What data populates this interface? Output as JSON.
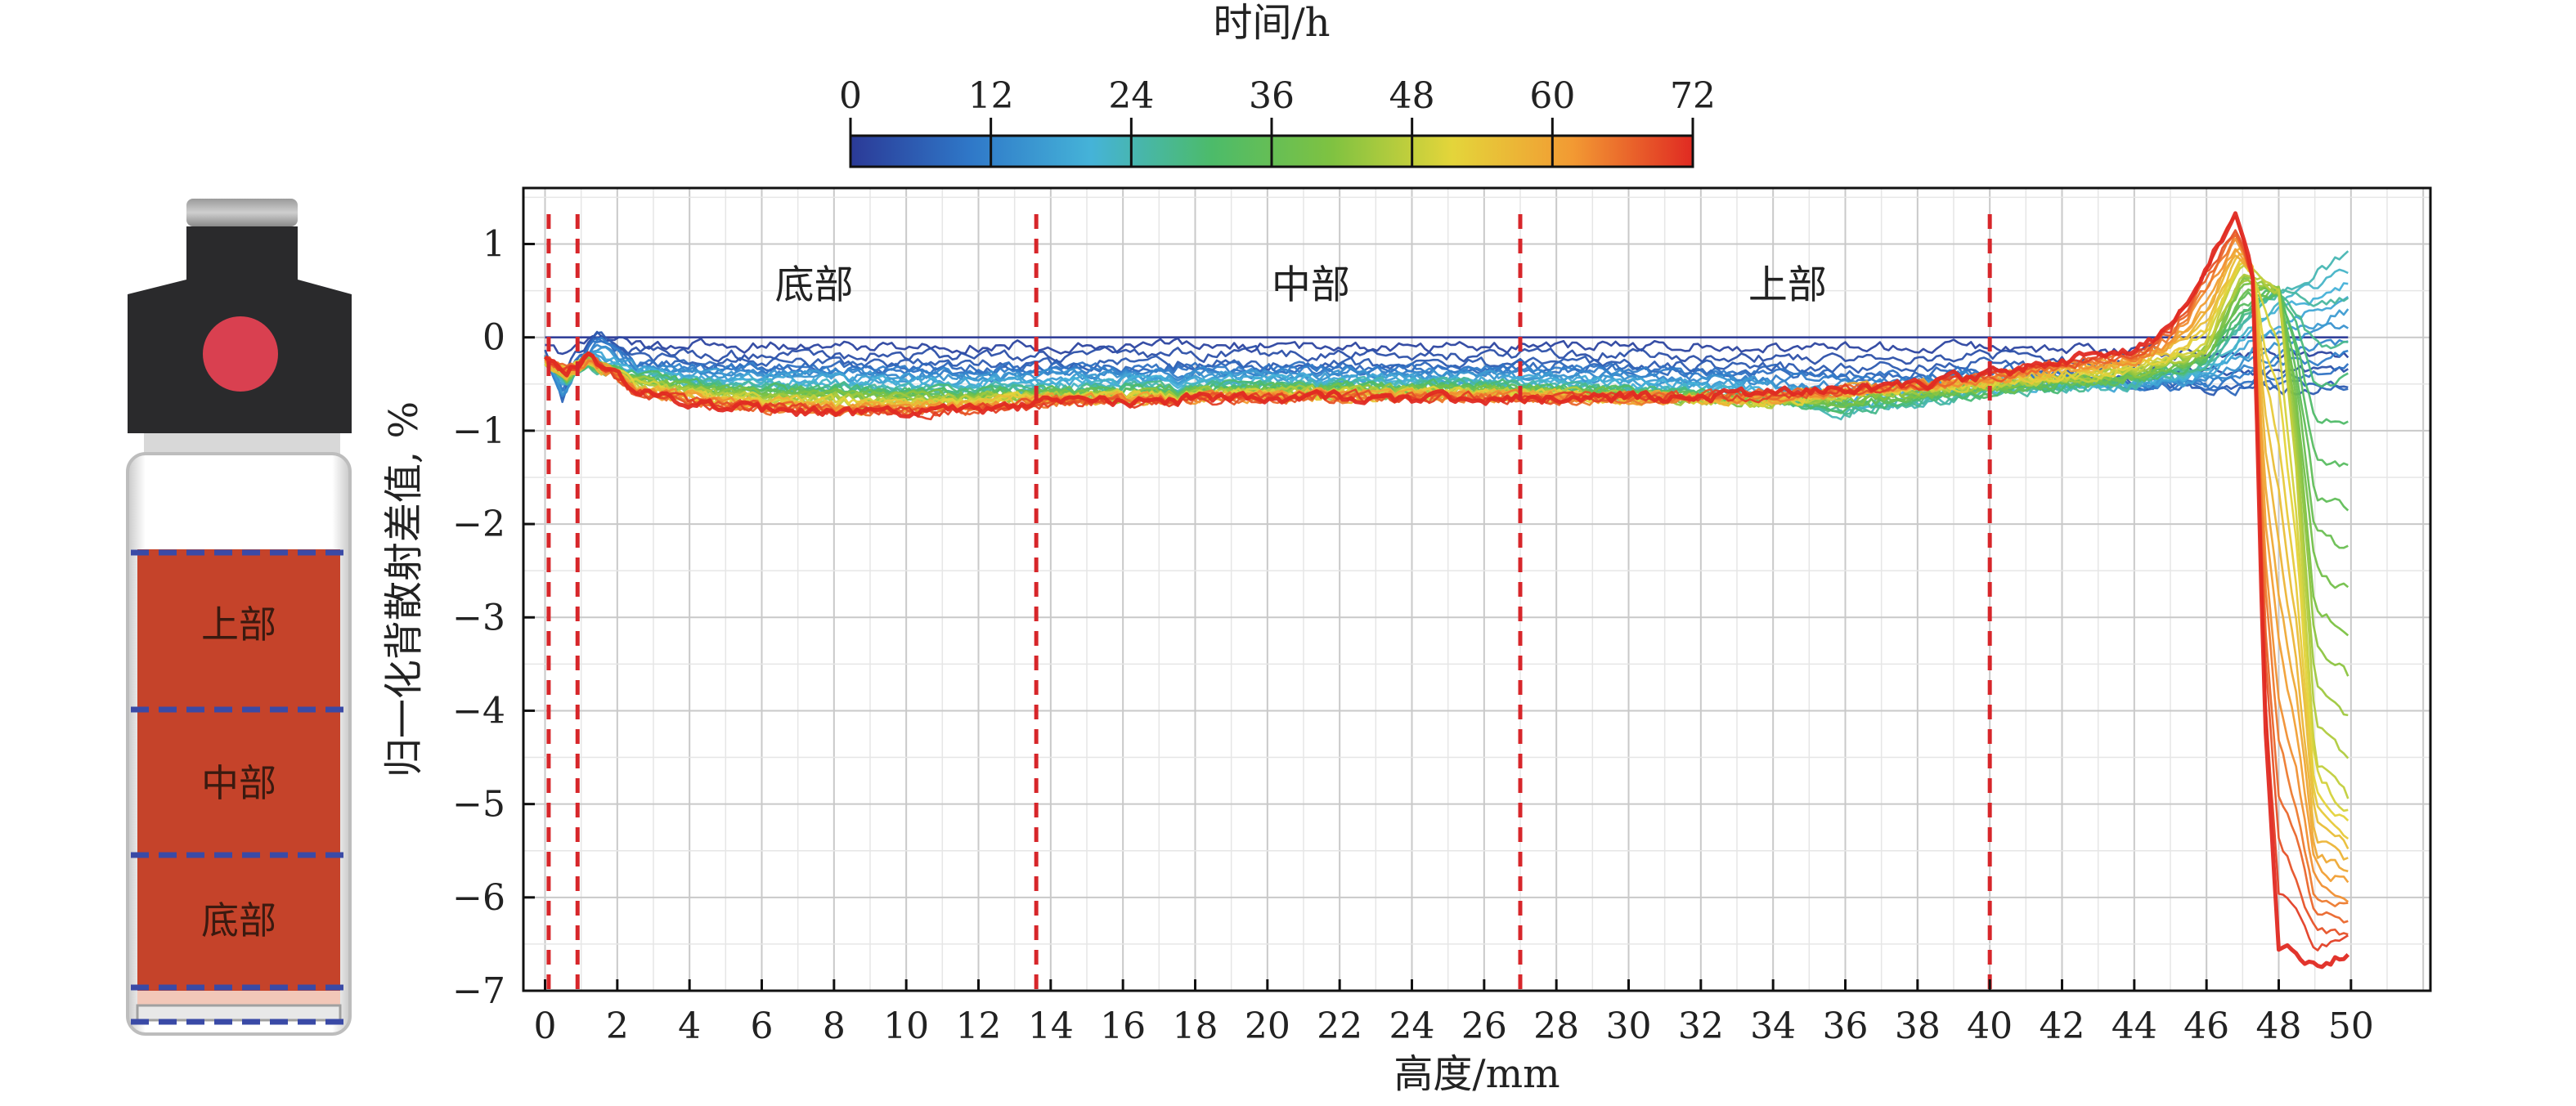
{
  "figure": {
    "colorbar": {
      "title": "时间/h",
      "ticks": [
        "0",
        "12",
        "24",
        "36",
        "48",
        "60",
        "72"
      ],
      "tick_values": [
        0,
        12,
        24,
        36,
        48,
        60,
        72
      ],
      "range": [
        0,
        72
      ],
      "colors": [
        "#2b3a97",
        "#2f78c8",
        "#45b3d8",
        "#4cbb6a",
        "#7fc241",
        "#e4d53a",
        "#f29a33",
        "#e02a22"
      ]
    },
    "vial": {
      "labels": {
        "top": "上部",
        "middle": "中部",
        "bottom": "底部"
      },
      "colors": {
        "cap": "#2a2a2c",
        "dot": "#d94050",
        "liquid": "#c5432a",
        "dash": "#3a4aa6"
      }
    },
    "region_labels": [
      "底部",
      "中部",
      "上部"
    ],
    "xlabel": "高度/mm",
    "ylabel": "归一化背散射差值, %"
  },
  "chart_data": {
    "type": "line",
    "xlabel": "高度/mm",
    "ylabel": "归一化背散射差值, %",
    "xlim": [
      -0.6,
      52.2
    ],
    "ylim": [
      -7.0,
      1.6
    ],
    "xticks": [
      "0",
      "2",
      "4",
      "6",
      "8",
      "10",
      "12",
      "14",
      "16",
      "18",
      "20",
      "22",
      "24",
      "26",
      "28",
      "30",
      "32",
      "34",
      "36",
      "38",
      "40",
      "42",
      "44",
      "46",
      "48",
      "50"
    ],
    "yticks": [
      "1",
      "0",
      "−1",
      "−2",
      "−3",
      "−4",
      "−5",
      "−6",
      "−7"
    ],
    "ytick_values": [
      1,
      0,
      -1,
      -2,
      -3,
      -4,
      -5,
      -6,
      -7
    ],
    "grid": true,
    "color_scale": "时间/h, 0–72",
    "region_boundaries_mm": [
      0.1,
      0.9,
      13.6,
      27,
      40
    ],
    "regions": [
      {
        "label": "底部",
        "x": [
          0.9,
          13.6
        ]
      },
      {
        "label": "中部",
        "x": [
          13.6,
          27
        ]
      },
      {
        "label": "上部",
        "x": [
          27,
          40
        ]
      }
    ],
    "series": [
      {
        "time_h": 0,
        "x": [
          0,
          50
        ],
        "y": [
          0,
          0
        ]
      },
      {
        "time_h": 6,
        "x": [
          0,
          0.5,
          0.8,
          1.5,
          2.5,
          5,
          10,
          14,
          20,
          26,
          30,
          34,
          38,
          40,
          44,
          46,
          47,
          48,
          50
        ],
        "y": [
          -0.2,
          -0.7,
          -0.3,
          0.05,
          -0.25,
          -0.3,
          -0.3,
          -0.3,
          -0.3,
          -0.3,
          -0.3,
          -0.35,
          -0.35,
          -0.3,
          -0.5,
          -0.6,
          -0.6,
          -0.6,
          -0.6
        ]
      },
      {
        "time_h": 24,
        "x": [
          0,
          0.6,
          1.2,
          2.5,
          5,
          10,
          14,
          20,
          26,
          30,
          34,
          36,
          38,
          40,
          44,
          46,
          47,
          48,
          50
        ],
        "y": [
          -0.25,
          -0.45,
          -0.3,
          -0.4,
          -0.5,
          -0.55,
          -0.55,
          -0.5,
          -0.5,
          -0.55,
          -0.65,
          -0.8,
          -0.7,
          -0.6,
          -0.5,
          -0.3,
          0.1,
          0.5,
          0.9
        ]
      },
      {
        "time_h": 48,
        "x": [
          0,
          0.6,
          1.2,
          2.5,
          5,
          10,
          14,
          20,
          26,
          30,
          34,
          36,
          38,
          40,
          44,
          46,
          47,
          48,
          48.5,
          49,
          50
        ],
        "y": [
          -0.25,
          -0.4,
          -0.25,
          -0.5,
          -0.65,
          -0.7,
          -0.65,
          -0.6,
          -0.6,
          -0.65,
          -0.7,
          -0.6,
          -0.55,
          -0.5,
          -0.35,
          -0.1,
          0.8,
          0.5,
          -1.5,
          -4.5,
          -5.0
        ]
      },
      {
        "time_h": 72,
        "x": [
          0,
          0.6,
          1.2,
          2.5,
          5,
          8,
          12,
          14,
          20,
          26,
          30,
          34,
          38,
          40,
          42,
          44,
          45,
          46,
          46.8,
          47.3,
          47.6,
          48,
          49,
          50
        ],
        "y": [
          -0.25,
          -0.35,
          -0.2,
          -0.6,
          -0.75,
          -0.8,
          -0.8,
          -0.7,
          -0.65,
          -0.65,
          -0.65,
          -0.6,
          -0.5,
          -0.4,
          -0.25,
          -0.15,
          0.1,
          0.8,
          1.3,
          0.6,
          -4.0,
          -6.5,
          -6.7,
          -6.6
        ]
      }
    ]
  }
}
